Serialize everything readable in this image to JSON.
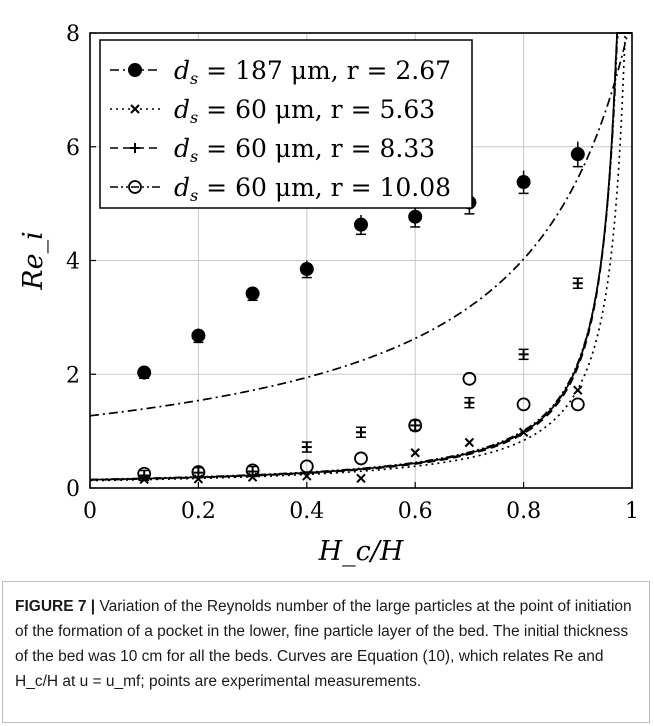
{
  "chart_data": {
    "type": "scatter",
    "xlabel": "H_c/H",
    "ylabel": "Re_i",
    "xlim": [
      0,
      1
    ],
    "ylim": [
      0,
      8
    ],
    "x_ticks": [
      "0",
      "0.2",
      "0.4",
      "0.6",
      "0.8",
      "1"
    ],
    "y_ticks": [
      "0",
      "2",
      "4",
      "6",
      "8"
    ],
    "grid": true,
    "legend_position": "top-left",
    "legend": [
      {
        "d_label": "d",
        "d_sub": "s",
        "rhs": " = 187 μm, r = 2.67",
        "line": "dash-dot",
        "marker": "filled-circle"
      },
      {
        "d_label": "d",
        "d_sub": "s",
        "rhs": " = 60 μm, r = 5.63",
        "line": "dotted",
        "marker": "x"
      },
      {
        "d_label": "d",
        "d_sub": "s",
        "rhs": " = 60 μm, r = 8.33",
        "line": "dashed",
        "marker": "plus"
      },
      {
        "d_label": "d",
        "d_sub": "s",
        "rhs": " = 60 μm, r = 10.08",
        "line": "dash-dot-dot",
        "marker": "open-circle"
      }
    ],
    "points": [
      {
        "marker": "filled-circle",
        "x": [
          0.1,
          0.2,
          0.3,
          0.4,
          0.5,
          0.6,
          0.7,
          0.8,
          0.9
        ],
        "y": [
          2.03,
          2.68,
          3.42,
          3.85,
          4.63,
          4.77,
          5.02,
          5.38,
          5.87
        ],
        "err": [
          0.1,
          0.12,
          0.12,
          0.15,
          0.17,
          0.18,
          0.2,
          0.2,
          0.22
        ]
      },
      {
        "marker": "x",
        "x": [
          0.1,
          0.2,
          0.3,
          0.4,
          0.5,
          0.6,
          0.7,
          0.8,
          0.9
        ],
        "y": [
          0.15,
          0.16,
          0.19,
          0.21,
          0.17,
          0.62,
          0.8,
          0.98,
          1.72
        ]
      },
      {
        "marker": "plus",
        "x": [
          0.1,
          0.2,
          0.3,
          0.4,
          0.5,
          0.6,
          0.7,
          0.8,
          0.9
        ],
        "y": [
          0.22,
          0.27,
          0.29,
          0.72,
          0.98,
          1.1,
          1.5,
          2.35,
          3.6
        ]
      },
      {
        "marker": "open-circle",
        "x": [
          0.1,
          0.2,
          0.3,
          0.4,
          0.5,
          0.6,
          0.7,
          0.8,
          0.9
        ],
        "y": [
          0.25,
          0.28,
          0.31,
          0.38,
          0.52,
          1.1,
          1.92,
          1.47,
          1.47
        ]
      }
    ],
    "curves": [
      {
        "style": "dash-dot",
        "a": 1.27,
        "b": 1.2
      },
      {
        "style": "dotted",
        "a": 0.13,
        "b": 1.022
      },
      {
        "style": "dashed",
        "a": 0.14,
        "b": 1.0085
      },
      {
        "style": "dash-dot-dot",
        "a": 0.15,
        "b": 1.012
      },
      {
        "style": "solid",
        "a": 0.145,
        "b": 1.0098
      }
    ]
  },
  "caption": {
    "label": "FIGURE 7 |",
    "text": " Variation of the Reynolds number of the large particles at the point of initiation of the formation of a pocket in the lower, fine particle layer of the bed. The initial thickness of the bed was 10 cm for all the beds. Curves are Equation (10), which relates Re and H_c/H at u = u_mf; points are experimental measurements."
  }
}
